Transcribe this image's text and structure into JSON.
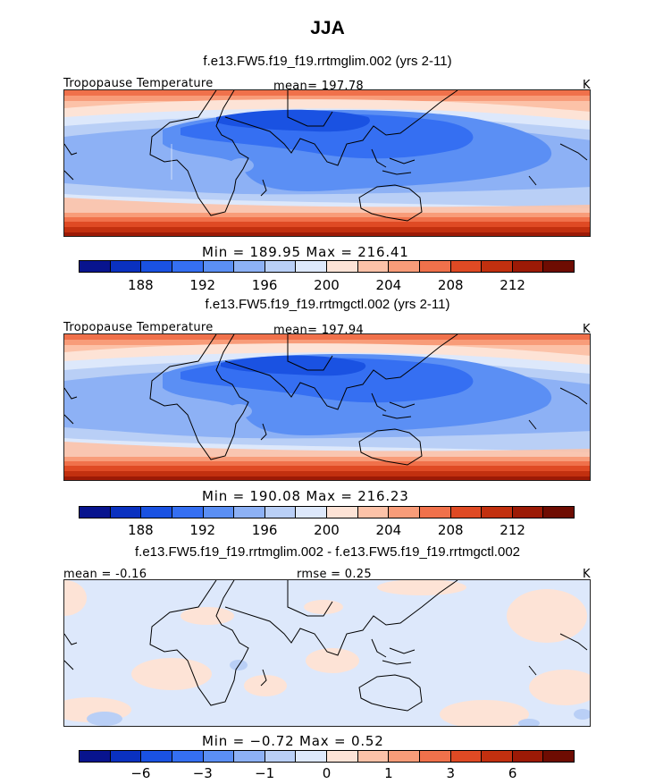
{
  "title": "JJA",
  "units": "K",
  "colors": {
    "seq": [
      "#08148e",
      "#0a31c0",
      "#1a52e2",
      "#356ff2",
      "#5b8ff4",
      "#8db1f5",
      "#b9cff6",
      "#dde8fb",
      "#fde3d6",
      "#fcc2a8",
      "#f89c79",
      "#f0714b",
      "#df4a24",
      "#c2300f",
      "#9c1a06",
      "#6e0c02"
    ],
    "land_outline": "#000000"
  },
  "panels": [
    {
      "title": "f.e13.FW5.f19_f19.rrtmglim.002 (yrs 2-11)",
      "label_left": "Tropopause Temperature",
      "label_mid": "mean= 197.78",
      "label_right": "K",
      "stats": "Min =  189.95 Max =  216.41",
      "ticks": [
        "188",
        "192",
        "196",
        "200",
        "204",
        "208",
        "212"
      ]
    },
    {
      "title": "f.e13.FW5.f19_f19.rrtmgctl.002 (yrs 2-11)",
      "label_left": "Tropopause Temperature",
      "label_mid": "mean= 197.94",
      "label_right": "K",
      "stats": "Min =  190.08 Max =  216.23",
      "ticks": [
        "188",
        "192",
        "196",
        "200",
        "204",
        "208",
        "212"
      ]
    },
    {
      "title": "f.e13.FW5.f19_f19.rrtmglim.002 - f.e13.FW5.f19_f19.rrtmgctl.002",
      "label_left": "mean =  -0.16",
      "label_mid": "rmse =    0.25",
      "label_right": "K",
      "stats": "Min =  −0.72 Max =    0.52",
      "ticks": [
        "−6",
        "−3",
        "−1",
        "0",
        "1",
        "3",
        "6"
      ]
    }
  ]
}
